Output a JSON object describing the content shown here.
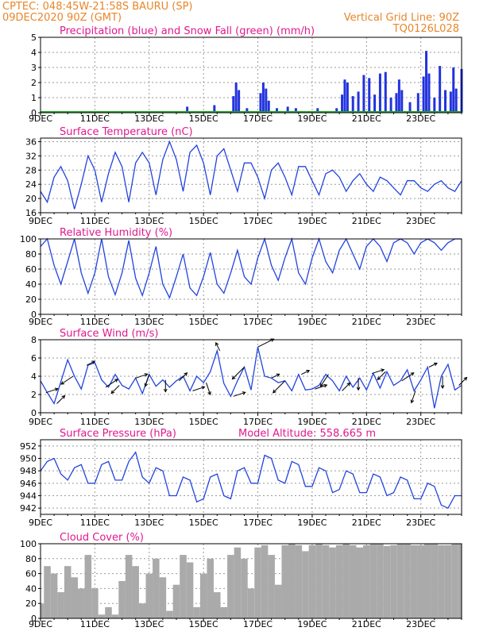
{
  "header": {
    "line1_left": "CPTEC:   048:45W-21:58S   BAURU (SP)",
    "line2_left": "09DEC2020 90Z (GMT)",
    "line2_right": "Vertical Grid Line: 90Z",
    "line3_right": "TQ0126L028"
  },
  "x_tick_labels": [
    "9DEC",
    "11DEC",
    "13DEC",
    "15DEC",
    "17DEC",
    "19DEC",
    "21DEC",
    "23DEC"
  ],
  "colors": {
    "precip": "#2233dd",
    "snow": "#22aa22",
    "line": "#2244dd",
    "cloud": "#aaaaaa",
    "title": "#e0198f",
    "header": "#e8862a"
  },
  "chart_data": [
    {
      "id": "precip",
      "type": "bar",
      "title": "Precipitation (blue) and Snow Fall (green) (mm/h)",
      "ylim": [
        0,
        5
      ],
      "yticks": [
        0,
        1,
        2,
        3,
        4,
        5
      ],
      "grid": true,
      "x_range_days": [
        9,
        24.5
      ],
      "series": [
        {
          "name": "Precipitation",
          "x": [
            14.4,
            15.4,
            16.1,
            16.2,
            16.3,
            16.6,
            17.1,
            17.2,
            17.3,
            17.4,
            17.7,
            18.1,
            18.4,
            19.2,
            19.9,
            20.1,
            20.2,
            20.3,
            20.5,
            20.7,
            20.9,
            21.1,
            21.3,
            21.5,
            21.7,
            21.9,
            22.1,
            22.2,
            22.3,
            22.6,
            22.9,
            23.1,
            23.2,
            23.3,
            23.5,
            23.7,
            23.9,
            24.1,
            24.2,
            24.3,
            24.5
          ],
          "values": [
            0.4,
            0.5,
            1.1,
            2.0,
            1.5,
            0.3,
            1.3,
            2.0,
            1.6,
            0.8,
            0.3,
            0.4,
            0.3,
            0.3,
            0.3,
            1.2,
            2.2,
            2.0,
            1.1,
            1.4,
            2.5,
            2.3,
            1.2,
            2.6,
            2.7,
            1.0,
            1.3,
            2.2,
            1.5,
            0.7,
            1.3,
            2.4,
            4.1,
            2.6,
            1.0,
            3.1,
            1.5,
            1.4,
            3.0,
            1.6,
            2.9
          ]
        },
        {
          "name": "Snow Fall",
          "x": [
            9,
            24.5
          ],
          "values": [
            0,
            0
          ]
        }
      ]
    },
    {
      "id": "temp",
      "type": "line",
      "title": "Surface Temperature (nC)",
      "ylim": [
        16,
        37
      ],
      "yticks": [
        16,
        20,
        24,
        28,
        32,
        36
      ],
      "grid": true,
      "x": [
        9.0,
        9.25,
        9.5,
        9.75,
        10.0,
        10.25,
        10.5,
        10.75,
        11.0,
        11.25,
        11.5,
        11.75,
        12.0,
        12.25,
        12.5,
        12.75,
        13.0,
        13.25,
        13.5,
        13.75,
        14.0,
        14.25,
        14.5,
        14.75,
        15.0,
        15.25,
        15.5,
        15.75,
        16.0,
        16.25,
        16.5,
        16.75,
        17.0,
        17.25,
        17.5,
        17.75,
        18.0,
        18.25,
        18.5,
        18.75,
        19.0,
        19.25,
        19.5,
        19.75,
        20.0,
        20.25,
        20.5,
        20.75,
        21.0,
        21.25,
        21.5,
        21.75,
        22.0,
        22.25,
        22.5,
        22.75,
        23.0,
        23.25,
        23.5,
        23.75,
        24.0,
        24.25,
        24.5
      ],
      "values": [
        22,
        19,
        26,
        29,
        25,
        17,
        24,
        32,
        28,
        19,
        27,
        33,
        29,
        19,
        30,
        33,
        30,
        21,
        31,
        36,
        31,
        22,
        33,
        35,
        30,
        21,
        32,
        34,
        28,
        22,
        30,
        30,
        26,
        20,
        28,
        30,
        26,
        21,
        29,
        29,
        25,
        21,
        27,
        28,
        26,
        22,
        25,
        27,
        24,
        22,
        26,
        25,
        23,
        21,
        25,
        25,
        23,
        22,
        24,
        25,
        23,
        22,
        25
      ]
    },
    {
      "id": "rh",
      "type": "line",
      "title": "Relative Humidity (%)",
      "ylim": [
        0,
        100
      ],
      "yticks": [
        0,
        20,
        40,
        60,
        80,
        100
      ],
      "grid": true,
      "x": [
        9.0,
        9.25,
        9.5,
        9.75,
        10.0,
        10.25,
        10.5,
        10.75,
        11.0,
        11.25,
        11.5,
        11.75,
        12.0,
        12.25,
        12.5,
        12.75,
        13.0,
        13.25,
        13.5,
        13.75,
        14.0,
        14.25,
        14.5,
        14.75,
        15.0,
        15.25,
        15.5,
        15.75,
        16.0,
        16.25,
        16.5,
        16.75,
        17.0,
        17.25,
        17.5,
        17.75,
        18.0,
        18.25,
        18.5,
        18.75,
        19.0,
        19.25,
        19.5,
        19.75,
        20.0,
        20.25,
        20.5,
        20.75,
        21.0,
        21.25,
        21.5,
        21.75,
        22.0,
        22.25,
        22.5,
        22.75,
        23.0,
        23.25,
        23.5,
        23.75,
        24.0,
        24.25,
        24.5
      ],
      "values": [
        90,
        100,
        65,
        40,
        70,
        100,
        55,
        28,
        55,
        100,
        50,
        26,
        55,
        98,
        48,
        25,
        55,
        90,
        40,
        22,
        50,
        80,
        35,
        25,
        50,
        82,
        40,
        28,
        55,
        85,
        50,
        40,
        75,
        100,
        65,
        45,
        75,
        100,
        55,
        40,
        75,
        100,
        70,
        55,
        85,
        100,
        80,
        60,
        90,
        100,
        90,
        70,
        95,
        100,
        95,
        80,
        95,
        100,
        95,
        85,
        95,
        100,
        100
      ]
    },
    {
      "id": "wind",
      "type": "line",
      "title": "Surface Wind (m/s)",
      "ylim": [
        0,
        8
      ],
      "yticks": [
        0,
        2,
        4,
        6,
        8
      ],
      "grid": true,
      "x": [
        9.0,
        9.25,
        9.5,
        9.75,
        10.0,
        10.25,
        10.5,
        10.75,
        11.0,
        11.25,
        11.5,
        11.75,
        12.0,
        12.25,
        12.5,
        12.75,
        13.0,
        13.25,
        13.5,
        13.75,
        14.0,
        14.25,
        14.5,
        14.75,
        15.0,
        15.25,
        15.5,
        15.75,
        16.0,
        16.25,
        16.5,
        16.75,
        17.0,
        17.25,
        17.5,
        17.75,
        18.0,
        18.25,
        18.5,
        18.75,
        19.0,
        19.25,
        19.5,
        19.75,
        20.0,
        20.25,
        20.5,
        20.75,
        21.0,
        21.25,
        21.5,
        21.75,
        22.0,
        22.25,
        22.5,
        22.75,
        23.0,
        23.25,
        23.5,
        23.75,
        24.0,
        24.25,
        24.5
      ],
      "values": [
        3.5,
        2.2,
        1.0,
        3.4,
        5.8,
        4.0,
        2.6,
        5.2,
        5.5,
        3.6,
        2.8,
        4.2,
        3.0,
        2.6,
        3.8,
        2.1,
        4.2,
        2.9,
        3.6,
        2.8,
        3.5,
        4.0,
        2.4,
        4.0,
        3.3,
        4.5,
        6.8,
        3.2,
        1.8,
        3.5,
        5.0,
        2.5,
        7.2,
        4.0,
        3.8,
        3.3,
        3.5,
        2.4,
        4.2,
        2.5,
        2.6,
        3.0,
        4.2,
        3.5,
        2.4,
        4.0,
        2.8,
        3.8,
        2.5,
        4.3,
        2.7,
        4.5,
        3.0,
        3.5,
        4.7,
        2.4,
        3.6,
        5.0,
        0.5,
        4.0,
        5.3,
        2.5,
        3.0
      ]
    },
    {
      "id": "pressure",
      "type": "line",
      "title": "Surface Pressure (hPa)",
      "annotation": "Model Altitude: 558.665  m",
      "ylim": [
        941,
        953
      ],
      "yticks": [
        942,
        944,
        946,
        948,
        950,
        952
      ],
      "grid": true,
      "x": [
        9.0,
        9.25,
        9.5,
        9.75,
        10.0,
        10.25,
        10.5,
        10.75,
        11.0,
        11.25,
        11.5,
        11.75,
        12.0,
        12.25,
        12.5,
        12.75,
        13.0,
        13.25,
        13.5,
        13.75,
        14.0,
        14.25,
        14.5,
        14.75,
        15.0,
        15.25,
        15.5,
        15.75,
        16.0,
        16.25,
        16.5,
        16.75,
        17.0,
        17.25,
        17.5,
        17.75,
        18.0,
        18.25,
        18.5,
        18.75,
        19.0,
        19.25,
        19.5,
        19.75,
        20.0,
        20.25,
        20.5,
        20.75,
        21.0,
        21.25,
        21.5,
        21.75,
        22.0,
        22.25,
        22.5,
        22.75,
        23.0,
        23.25,
        23.5,
        23.75,
        24.0,
        24.25,
        24.5
      ],
      "values": [
        948.0,
        949.5,
        950.0,
        947.5,
        946.5,
        948.5,
        949.0,
        946.0,
        946.0,
        949.0,
        949.5,
        946.5,
        946.5,
        949.5,
        951.0,
        947.0,
        946.0,
        948.5,
        948.0,
        944.0,
        944.0,
        947.0,
        946.5,
        943.0,
        943.5,
        947.0,
        947.5,
        944.0,
        943.5,
        948.0,
        948.5,
        946.0,
        946.0,
        950.5,
        950.0,
        946.5,
        946.0,
        949.5,
        949.0,
        945.5,
        945.5,
        948.5,
        948.0,
        944.5,
        945.0,
        948.0,
        947.5,
        944.5,
        944.5,
        947.5,
        947.0,
        944.0,
        944.5,
        947.0,
        946.5,
        943.5,
        943.5,
        946.0,
        945.5,
        942.5,
        942.0,
        944.0,
        944.0
      ]
    },
    {
      "id": "cloud",
      "type": "bar",
      "title": "Cloud Cover (%)",
      "ylim": [
        0,
        100
      ],
      "yticks": [
        0,
        20,
        40,
        60,
        80,
        100
      ],
      "grid": true,
      "x": [
        9.0,
        9.25,
        9.5,
        9.75,
        10.0,
        10.25,
        10.5,
        10.75,
        11.0,
        11.25,
        11.5,
        11.75,
        12.0,
        12.25,
        12.5,
        12.75,
        13.0,
        13.25,
        13.5,
        13.75,
        14.0,
        14.25,
        14.5,
        14.75,
        15.0,
        15.25,
        15.5,
        15.75,
        16.0,
        16.25,
        16.5,
        16.75,
        17.0,
        17.25,
        17.5,
        17.75,
        18.0,
        18.25,
        18.5,
        18.75,
        19.0,
        19.25,
        19.5,
        19.75,
        20.0,
        20.25,
        20.5,
        20.75,
        21.0,
        21.25,
        21.5,
        21.75,
        22.0,
        22.25,
        22.5,
        22.75,
        23.0,
        23.25,
        23.5,
        23.75,
        24.0,
        24.25,
        24.5
      ],
      "values": [
        20,
        70,
        60,
        35,
        70,
        55,
        40,
        85,
        40,
        5,
        15,
        5,
        50,
        85,
        70,
        20,
        60,
        80,
        55,
        10,
        45,
        85,
        75,
        15,
        60,
        80,
        35,
        15,
        85,
        95,
        80,
        40,
        95,
        98,
        85,
        45,
        98,
        100,
        98,
        90,
        98,
        100,
        98,
        95,
        98,
        100,
        98,
        95,
        98,
        100,
        100,
        97,
        98,
        100,
        100,
        98,
        98,
        100,
        100,
        98,
        98,
        100,
        100
      ]
    }
  ],
  "wind_arrows": {
    "x": [
      9.2,
      9.6,
      10.2,
      10.7,
      11.4,
      11.9,
      12.5,
      13.0,
      13.6,
      14.1,
      14.6,
      15.1,
      15.6,
      16.1,
      16.5,
      17.0,
      17.5,
      18.0,
      18.6,
      19.1,
      19.6,
      20.1,
      20.7,
      21.2,
      21.7,
      22.3,
      22.8,
      23.3,
      23.8,
      24.4
    ],
    "u": [
      3,
      2,
      -3,
      2,
      3,
      -2,
      3,
      -1,
      0,
      2,
      3,
      1,
      -1,
      3,
      -3,
      4,
      2,
      -3,
      2,
      3,
      -2,
      2,
      0,
      3,
      -2,
      3,
      -1,
      2,
      0,
      2
    ],
    "v": [
      1,
      2,
      -2,
      1,
      2,
      -2,
      1,
      -3,
      -3,
      2,
      1,
      -3,
      2,
      1,
      -3,
      2,
      1,
      -3,
      1,
      1,
      -3,
      2,
      -3,
      1,
      -2,
      2,
      -3,
      1,
      -3,
      2
    ]
  }
}
